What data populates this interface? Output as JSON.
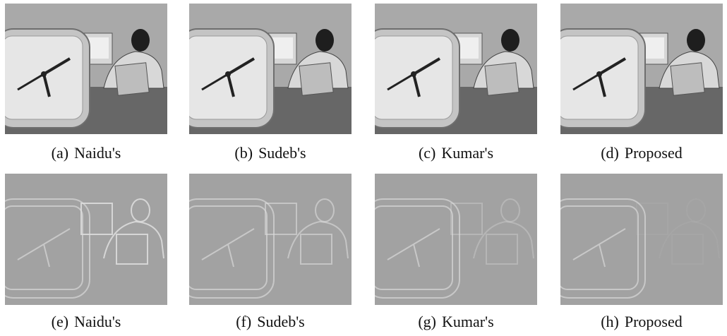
{
  "figure": {
    "panels": [
      {
        "label": "(a)",
        "caption": "Naidu's"
      },
      {
        "label": "(b)",
        "caption": "Sudeb's"
      },
      {
        "label": "(c)",
        "caption": "Kumar's"
      },
      {
        "label": "(d)",
        "caption": "Proposed"
      },
      {
        "label": "(e)",
        "caption": "Naidu's"
      },
      {
        "label": "(f)",
        "caption": "Sudeb's"
      },
      {
        "label": "(g)",
        "caption": "Kumar's"
      },
      {
        "label": "(h)",
        "caption": "Proposed"
      }
    ]
  }
}
